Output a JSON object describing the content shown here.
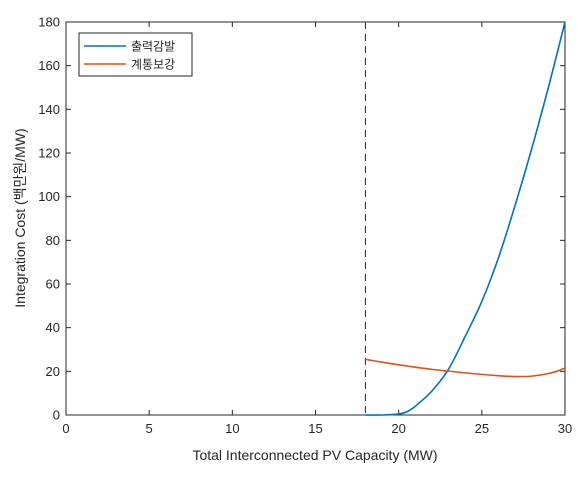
{
  "chart_data": {
    "type": "line",
    "title": "",
    "xlabel": "Total Interconnected PV Capacity (MW)",
    "ylabel": "Integration Cost (백만원/MW)",
    "xlim": [
      0,
      30
    ],
    "ylim": [
      0,
      180
    ],
    "x_ticks": [
      0,
      5,
      10,
      15,
      20,
      25,
      30
    ],
    "y_ticks": [
      0,
      20,
      40,
      60,
      80,
      100,
      120,
      140,
      160,
      180
    ],
    "grid": false,
    "legend_position": "top-left",
    "vertical_reference_line": {
      "x": 18,
      "style": "dashed",
      "color": "#262626"
    },
    "series": [
      {
        "name": "출력감발",
        "color": "#0072BD",
        "x": [
          18,
          19,
          20,
          20.5,
          21,
          22,
          23,
          24,
          25,
          26,
          27,
          28,
          29,
          30
        ],
        "y": [
          0,
          0,
          0.5,
          1.5,
          4,
          11,
          21,
          36,
          52,
          72,
          96,
          122,
          150,
          180
        ]
      },
      {
        "name": "계통보강",
        "color": "#D95319",
        "x": [
          18,
          19,
          20,
          21,
          22,
          23,
          24,
          25,
          26,
          27,
          28,
          29,
          29.5,
          30
        ],
        "y": [
          25.5,
          24.2,
          23,
          21.9,
          20.9,
          20.1,
          19.3,
          18.6,
          18,
          17.6,
          17.8,
          19,
          20,
          21.5
        ]
      }
    ]
  }
}
